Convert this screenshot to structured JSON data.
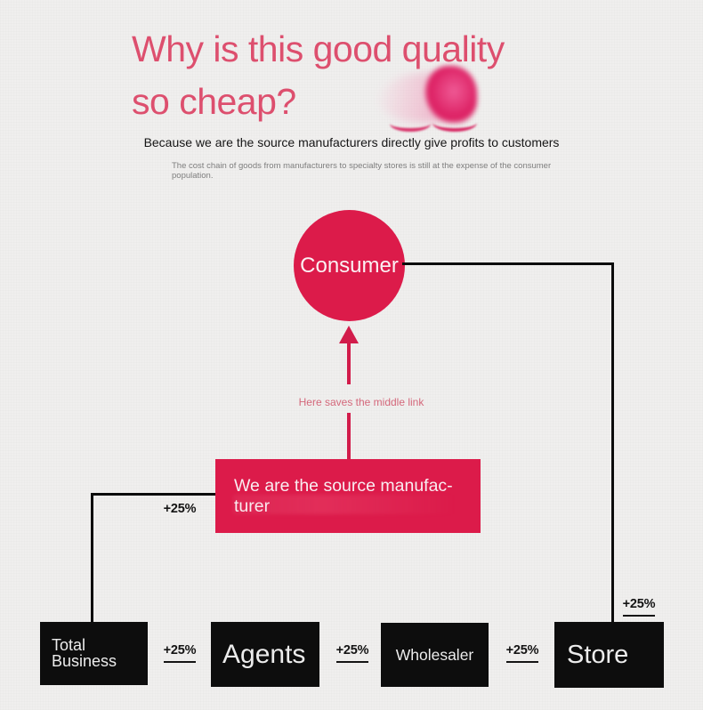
{
  "header": {
    "title_lines": [
      "Why is this good quality",
      "so cheap?"
    ],
    "subtitle": "Because we are the source manufacturers directly give profits to customers",
    "note": "The cost chain of goods from manufacturers to specialty stores is still at the expense of the consumer population."
  },
  "flow": {
    "consumer_label": "Consumer",
    "arrow_caption": "Here saves the middle link",
    "source_lines": [
      "We are the source manufac-",
      "turer"
    ],
    "percent_labels": {
      "source_to_total": "+25%",
      "total_to_agents": "+25%",
      "agents_to_wholesaler": "+25%",
      "wholesaler_to_store": "+25%",
      "store_markup": "+25%"
    },
    "nodes": {
      "total_business_lines": [
        "Total",
        "Business"
      ],
      "agents": "Agents",
      "wholesaler": "Wholesaler",
      "store": "Store"
    }
  },
  "colors": {
    "accent_crimson": "#dc1b4a",
    "connector_pink": "#d21c4b",
    "title_pink": "#dd4f6e",
    "caption_pink": "#d4687b",
    "node_black": "#0d0d0d",
    "line_black": "#0b0b0b",
    "background": "#f0efee"
  }
}
